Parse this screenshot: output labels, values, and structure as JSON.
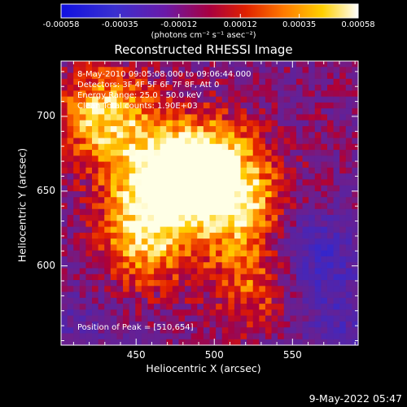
{
  "colorbar": {
    "ticks": [
      "-0.00058",
      "-0.00035",
      "-0.00012",
      "0.00012",
      "0.00035",
      "0.00058"
    ],
    "units_label": "(photons cm⁻² s⁻¹ asec⁻²)"
  },
  "title": "Reconstructed RHESSI Image",
  "info_lines": {
    "time": "8-May-2010 09:05:08.000 to 09:06:44.000",
    "detectors": "Detectors: 3F 4F 5F 6F 7F 8F, Att 0",
    "energy": "Energy Range: 25.0 - 50.0 keV",
    "clean": "Clean    Total counts: 1.90E+03"
  },
  "peak_label": "Position of Peak = [510,654]",
  "timestamp": "9-May-2022 05:47",
  "chart_data": {
    "type": "heatmap",
    "title": "Reconstructed RHESSI Image",
    "xlabel": "Heliocentric X (arcsec)",
    "ylabel": "Heliocentric Y (arcsec)",
    "xlim": [
      402,
      592
    ],
    "ylim": [
      547,
      737
    ],
    "x_ticks": [
      450,
      500,
      550
    ],
    "y_ticks": [
      600,
      650,
      700
    ],
    "colorbar_range": [
      -0.00058,
      0.00058
    ],
    "colormap": "blue-purple-red-yellow-white",
    "peak_position": [
      510,
      654
    ],
    "bright_regions": [
      {
        "x": 465,
        "y": 655,
        "level": 0.95
      },
      {
        "x": 495,
        "y": 670,
        "level": 0.9
      },
      {
        "x": 430,
        "y": 700,
        "level": 0.85
      },
      {
        "x": 515,
        "y": 640,
        "level": 0.75
      },
      {
        "x": 455,
        "y": 615,
        "level": 0.7
      },
      {
        "x": 530,
        "y": 590,
        "level": 0.6
      }
    ],
    "dark_regions": [
      {
        "x": 560,
        "y": 605,
        "level": -0.6
      },
      {
        "x": 580,
        "y": 560,
        "level": -0.3
      },
      {
        "x": 410,
        "y": 560,
        "level": -0.2
      }
    ]
  }
}
